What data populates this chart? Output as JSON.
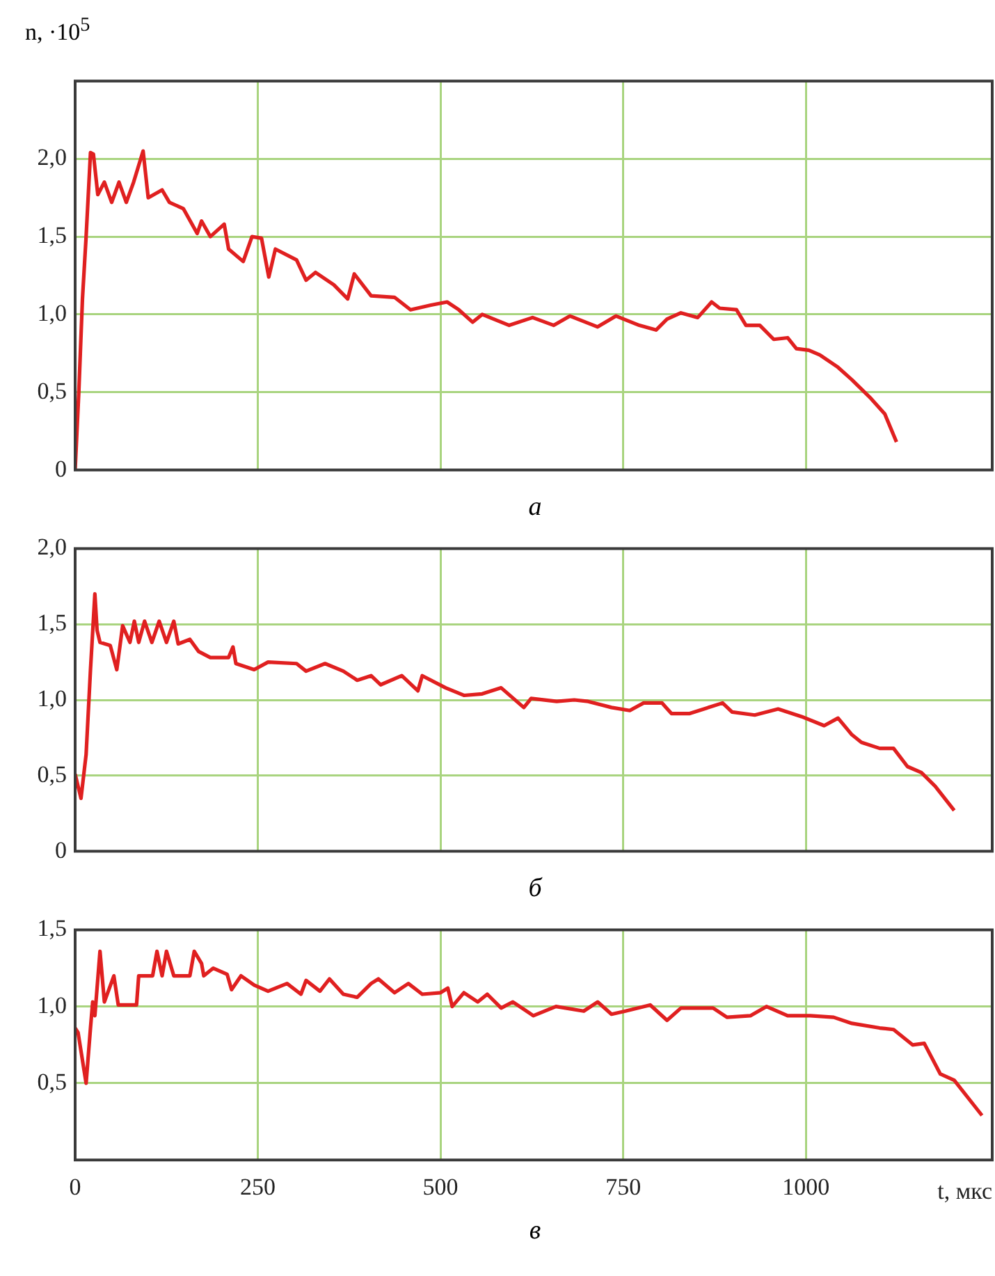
{
  "chart_data": [
    {
      "type": "line",
      "ylabel": "n, ·10$^{5}$",
      "annotations": [
        "а"
      ],
      "color": "#e02020",
      "grid": true,
      "tick_labels": "y",
      "xlim": [
        0,
        1255
      ],
      "xticks": [
        0,
        250,
        500,
        750,
        1000
      ],
      "ylim": [
        0,
        2.5
      ],
      "yticks": [
        0,
        {
          "value": 0.5,
          "label": "0,5"
        },
        {
          "value": 1,
          "label": "1,0"
        },
        {
          "value": 1.5,
          "label": "1,5"
        },
        {
          "value": 2,
          "label": "2,0"
        }
      ],
      "x": [
        0,
        5,
        10,
        15,
        21,
        25,
        31,
        40,
        50,
        60,
        70,
        80,
        93,
        100,
        119,
        129,
        148,
        167,
        173,
        185,
        204,
        210,
        230,
        242,
        255,
        265,
        274,
        303,
        316,
        329,
        354,
        373,
        382,
        405,
        437,
        459,
        487,
        509,
        525,
        544,
        557,
        594,
        626,
        655,
        677,
        715,
        740,
        772,
        795,
        810,
        829,
        852,
        871,
        882,
        905,
        918,
        937,
        956,
        975,
        987,
        1004,
        1019,
        1044,
        1063,
        1089,
        1108,
        1124
      ],
      "values": [
        0,
        0.5,
        1.1,
        1.5,
        2.04,
        2.03,
        1.77,
        1.85,
        1.72,
        1.85,
        1.72,
        1.85,
        2.05,
        1.75,
        1.8,
        1.72,
        1.68,
        1.52,
        1.6,
        1.5,
        1.58,
        1.42,
        1.34,
        1.5,
        1.49,
        1.24,
        1.42,
        1.35,
        1.22,
        1.27,
        1.19,
        1.1,
        1.26,
        1.12,
        1.11,
        1.03,
        1.06,
        1.08,
        1.03,
        0.95,
        1.0,
        0.93,
        0.98,
        0.93,
        0.99,
        0.92,
        0.99,
        0.93,
        0.9,
        0.97,
        1.01,
        0.98,
        1.08,
        1.04,
        1.03,
        0.93,
        0.93,
        0.84,
        0.85,
        0.78,
        0.77,
        0.74,
        0.66,
        0.58,
        0.46,
        0.36,
        0.18
      ]
    },
    {
      "type": "line",
      "annotations": [
        "б"
      ],
      "color": "#e02020",
      "grid": true,
      "tick_labels": "y",
      "xlim": [
        0,
        1255
      ],
      "xticks": [
        0,
        250,
        500,
        750,
        1000
      ],
      "ylim": [
        0,
        2
      ],
      "yticks": [
        0,
        {
          "value": 0.5,
          "label": "0,5"
        },
        {
          "value": 1,
          "label": "1,0"
        },
        {
          "value": 1.5,
          "label": "1,5"
        },
        {
          "value": 2,
          "label": "2,0"
        }
      ],
      "x": [
        0,
        8,
        15,
        21,
        27,
        30,
        34,
        48,
        57,
        65,
        75,
        81,
        87,
        95,
        105,
        115,
        125,
        135,
        141,
        157,
        169,
        185,
        210,
        216,
        220,
        245,
        264,
        303,
        316,
        342,
        367,
        386,
        405,
        418,
        447,
        469,
        475,
        507,
        532,
        557,
        583,
        614,
        624,
        659,
        683,
        702,
        734,
        759,
        778,
        803,
        816,
        841,
        886,
        899,
        930,
        962,
        994,
        1025,
        1044,
        1063,
        1076,
        1101,
        1120,
        1139,
        1158,
        1177,
        1203
      ],
      "values": [
        0.51,
        0.35,
        0.64,
        1.2,
        1.7,
        1.46,
        1.38,
        1.36,
        1.2,
        1.49,
        1.38,
        1.52,
        1.38,
        1.52,
        1.38,
        1.52,
        1.38,
        1.52,
        1.37,
        1.4,
        1.32,
        1.28,
        1.28,
        1.35,
        1.24,
        1.2,
        1.25,
        1.24,
        1.19,
        1.24,
        1.19,
        1.13,
        1.16,
        1.1,
        1.16,
        1.06,
        1.16,
        1.08,
        1.03,
        1.04,
        1.08,
        0.95,
        1.01,
        0.99,
        1.0,
        0.99,
        0.95,
        0.93,
        0.98,
        0.98,
        0.91,
        0.91,
        0.98,
        0.92,
        0.9,
        0.94,
        0.89,
        0.83,
        0.88,
        0.77,
        0.72,
        0.68,
        0.68,
        0.56,
        0.52,
        0.43,
        0.27
      ]
    },
    {
      "type": "line",
      "xlabel": "t, мкс",
      "annotations": [
        "в"
      ],
      "color": "#e02020",
      "grid": true,
      "xlim": [
        0,
        1255
      ],
      "xticks": [
        0,
        250,
        500,
        750,
        1000
      ],
      "ylim": [
        0,
        1.5
      ],
      "yticks": [
        {
          "value": 0.5,
          "label": "0,5"
        },
        {
          "value": 1,
          "label": "1,0"
        },
        {
          "value": 1.5,
          "label": "1,5"
        }
      ],
      "x": [
        0,
        4,
        15,
        21,
        24,
        27,
        34,
        40,
        53,
        59,
        84,
        87,
        106,
        112,
        119,
        125,
        135,
        157,
        163,
        173,
        176,
        189,
        208,
        214,
        227,
        245,
        264,
        290,
        309,
        316,
        335,
        348,
        367,
        386,
        405,
        415,
        437,
        456,
        475,
        500,
        510,
        516,
        532,
        551,
        564,
        583,
        599,
        627,
        658,
        696,
        715,
        734,
        753,
        787,
        810,
        829,
        873,
        892,
        924,
        946,
        975,
        1006,
        1038,
        1063,
        1101,
        1120,
        1146,
        1162,
        1184,
        1203,
        1241
      ],
      "values": [
        0.86,
        0.83,
        0.5,
        0.86,
        1.03,
        0.94,
        1.36,
        1.03,
        1.2,
        1.01,
        1.01,
        1.2,
        1.2,
        1.36,
        1.2,
        1.36,
        1.2,
        1.2,
        1.36,
        1.28,
        1.2,
        1.25,
        1.21,
        1.11,
        1.2,
        1.14,
        1.1,
        1.15,
        1.08,
        1.17,
        1.1,
        1.18,
        1.08,
        1.06,
        1.15,
        1.18,
        1.09,
        1.15,
        1.08,
        1.09,
        1.12,
        1.0,
        1.09,
        1.03,
        1.08,
        0.99,
        1.03,
        0.94,
        1.0,
        0.97,
        1.03,
        0.95,
        0.97,
        1.01,
        0.91,
        0.99,
        0.99,
        0.93,
        0.94,
        1.0,
        0.94,
        0.94,
        0.93,
        0.89,
        0.86,
        0.85,
        0.75,
        0.76,
        0.56,
        0.52,
        0.29
      ]
    }
  ]
}
